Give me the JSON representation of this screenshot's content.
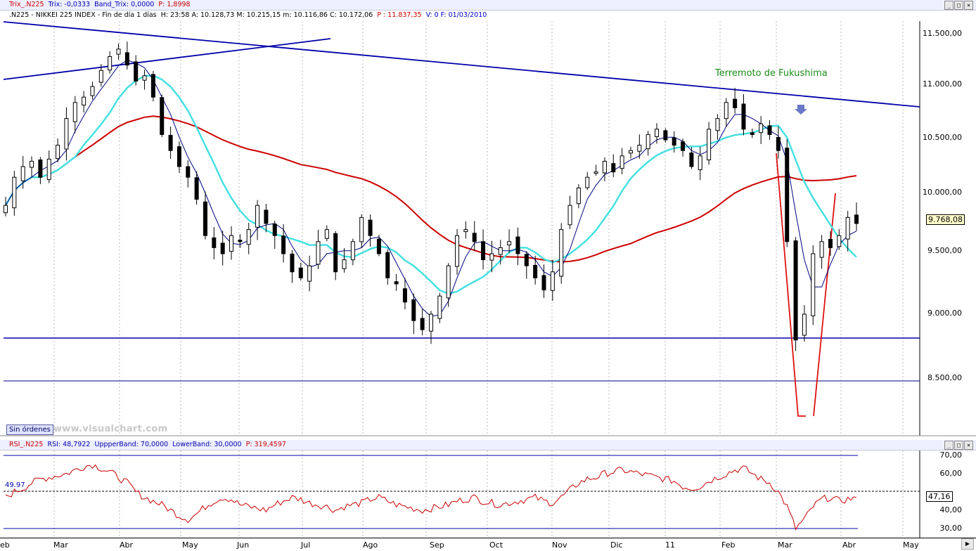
{
  "top_bar": {
    "name": "Trix_.N225",
    "trix": "Trix: -0,0333",
    "band": "Band_Trix: 0,0000",
    "p": "P: 1,8998"
  },
  "header": {
    "symbol": ".N225 - NIKKEI 225 INDEX - Fin de día 1 días",
    "stats": "H: 23:58  A: 10.128,73  M: 10.215,15  m: 10.116,86  C: 10.172,06",
    "p": "P : 11.837,35",
    "v": "V: 0  F: 01/03/2010"
  },
  "rsi_bar": {
    "name": "RSI_.N225",
    "rsi": "RSI: 48,7922",
    "upper": "UppperBand: 70,0000",
    "lower": "LowerBand: 30,0000",
    "p": "P: 319,4597"
  },
  "window_buttons": [
    "_",
    "□",
    "×"
  ],
  "annotation": "Terremoto de Fukushima",
  "sin_ordenes": "Sin órdenes",
  "watermark": "www.visualchart.com",
  "price_axis": [
    "11.500,00",
    "11.000,00",
    "10.500,00",
    "10.000,00",
    "9.500,00",
    "9.000,00",
    "8.500,00"
  ],
  "last_price": "9.768,08",
  "rsi_axis": [
    "70,00",
    "60,00",
    "40,00",
    "30,00"
  ],
  "rsi_last": "47,16",
  "rsi_marker": "49.97",
  "months": [
    "eb",
    "Mar",
    "Abr",
    "May",
    "Jun",
    "Jul",
    "Ago",
    "Sep",
    "Oct",
    "Nov",
    "Dic",
    "11",
    "Feb",
    "Mar",
    "Abr",
    "May"
  ],
  "colors": {
    "up_candle": "#ffffff",
    "down_candle": "#000000",
    "ma_fast": "#000080",
    "ma_mid": "#40e0e0",
    "ma_slow": "#cc0000",
    "trendline": "#0000aa",
    "rsi_line": "#cc0000",
    "annotation": "#1a8c1a"
  },
  "chart_data": [
    {
      "type": "candlestick",
      "title": "NIKKEI 225 INDEX",
      "period": "Feb 2010 – Apr 2011, daily",
      "ylim": [
        8100,
        11650
      ],
      "series": [
        {
          "name": "close",
          "values": [
            9900,
            10150,
            10250,
            10300,
            10150,
            10320,
            10450,
            10700,
            10850,
            10900,
            11000,
            11150,
            11280,
            11350,
            11200,
            11050,
            11100,
            10900,
            10550,
            10400,
            10250,
            10150,
            9950,
            9650,
            9550,
            9500,
            9650,
            9600,
            9700,
            9900,
            9750,
            9650,
            9500,
            9350,
            9300,
            9400,
            9600,
            9700,
            9350,
            9450,
            9600,
            9800,
            9650,
            9500,
            9300,
            9250,
            9100,
            8950,
            8880,
            9000,
            9150,
            9400,
            9650,
            9700,
            9600,
            9450,
            9500,
            9550,
            9600,
            9500,
            9400,
            9300,
            9200,
            9350,
            9700,
            9900,
            10050,
            10150,
            10200,
            10300,
            10200,
            10350,
            10400,
            10450,
            10550,
            10600,
            10500,
            10450,
            10400,
            10250,
            10350,
            10600,
            10700,
            10850,
            10800,
            10600,
            10550,
            10650,
            10550,
            10400,
            9600,
            8800,
            9000,
            9500,
            9600,
            9550,
            9650,
            9800,
            9750
          ]
        }
      ]
    },
    {
      "type": "line",
      "title": "RSI_.N225",
      "ylim": [
        27,
        72
      ],
      "upper_band": 70,
      "lower_band": 30,
      "series": [
        {
          "name": "RSI",
          "values": [
            47,
            50,
            52,
            55,
            57,
            58,
            59,
            60,
            62,
            64,
            65,
            63,
            61,
            58,
            55,
            50,
            47,
            45,
            43,
            40,
            37,
            35,
            38,
            42,
            45,
            47,
            46,
            43,
            42,
            41,
            40,
            43,
            45,
            47,
            46,
            44,
            43,
            42,
            40,
            42,
            43,
            44,
            46,
            47,
            45,
            43,
            42,
            41,
            40,
            41,
            42,
            43,
            45,
            46,
            47,
            45,
            44,
            43,
            44,
            45,
            46,
            47,
            45,
            44,
            47,
            51,
            55,
            57,
            58,
            60,
            61,
            62,
            61,
            60,
            59,
            58,
            57,
            56,
            53,
            52,
            53,
            56,
            58,
            60,
            62,
            63,
            60,
            57,
            55,
            50,
            42,
            30,
            35,
            42,
            46,
            47,
            45,
            46,
            47
          ]
        }
      ]
    }
  ]
}
